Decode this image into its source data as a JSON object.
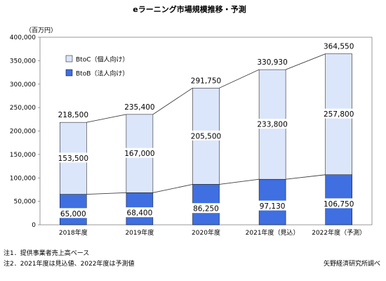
{
  "chart_data": {
    "type": "bar",
    "stacked": true,
    "title": "eラーニング市場規模推移・予測",
    "ylabel": "（百万円）",
    "ylim": [
      0,
      400000
    ],
    "yticks": [
      0,
      50000,
      100000,
      150000,
      200000,
      250000,
      300000,
      350000,
      400000
    ],
    "ytick_labels": [
      "0",
      "50,000",
      "100,000",
      "150,000",
      "200,000",
      "250,000",
      "300,000",
      "350,000",
      "400,000"
    ],
    "categories": [
      "2018年度",
      "2019年度",
      "2020年度",
      "2021年度（見込）",
      "2022年度（予測）"
    ],
    "series": [
      {
        "name": "BtoB（法人向け）",
        "color": "#3f6fe0",
        "values": [
          65000,
          68400,
          86250,
          97130,
          106750
        ],
        "value_labels": [
          "65,000",
          "68,400",
          "86,250",
          "97,130",
          "106,750"
        ]
      },
      {
        "name": "BtoC（個人向け）",
        "color": "#dce6fb",
        "values": [
          153500,
          167000,
          205500,
          233800,
          257800
        ],
        "value_labels": [
          "153,500",
          "167,000",
          "205,500",
          "233,800",
          "257,800"
        ]
      }
    ],
    "totals": [
      218500,
      235400,
      291750,
      330930,
      364550
    ],
    "total_labels": [
      "218,500",
      "235,400",
      "291,750",
      "330,930",
      "364,550"
    ],
    "legend": {
      "position": "top-left",
      "order": [
        "BtoC（個人向け）",
        "BtoB（法人向け）"
      ]
    },
    "grid": false,
    "series_lines": true
  },
  "notes": [
    "注1．提供事業者売上高ベース",
    "注2．2021年度は見込値、2022年度は予測値"
  ],
  "source": "矢野経済研究所調べ"
}
